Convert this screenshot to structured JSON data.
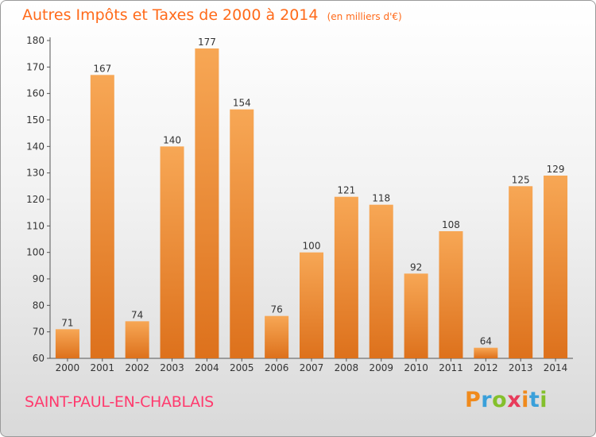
{
  "chart_data": {
    "type": "bar",
    "title": "Autres Impôts et Taxes de 2000 à 2014",
    "subtitle": "(en milliers d'€)",
    "categories": [
      "2000",
      "2001",
      "2002",
      "2003",
      "2004",
      "2005",
      "2006",
      "2007",
      "2008",
      "2009",
      "2010",
      "2011",
      "2012",
      "2013",
      "2014"
    ],
    "values": [
      71,
      167,
      74,
      140,
      177,
      154,
      76,
      100,
      121,
      118,
      92,
      108,
      64,
      125,
      129
    ],
    "ylim": [
      60,
      180
    ],
    "yticks": [
      60,
      70,
      80,
      90,
      100,
      110,
      120,
      130,
      140,
      150,
      160,
      170,
      180
    ],
    "grid": false,
    "data_labels": true,
    "colors": {
      "bar_top": "#f7a755",
      "bar_bottom": "#dd711c",
      "axis": "#555555"
    }
  },
  "footer": {
    "commune": "SAINT-PAUL-EN-CHABLAIS",
    "logo": "Proxiti",
    "logo_colors": [
      "#f08a1c",
      "#3aa0da",
      "#84c02c",
      "#e83b5b",
      "#f08a1c",
      "#3aa0da",
      "#84c02c"
    ]
  }
}
